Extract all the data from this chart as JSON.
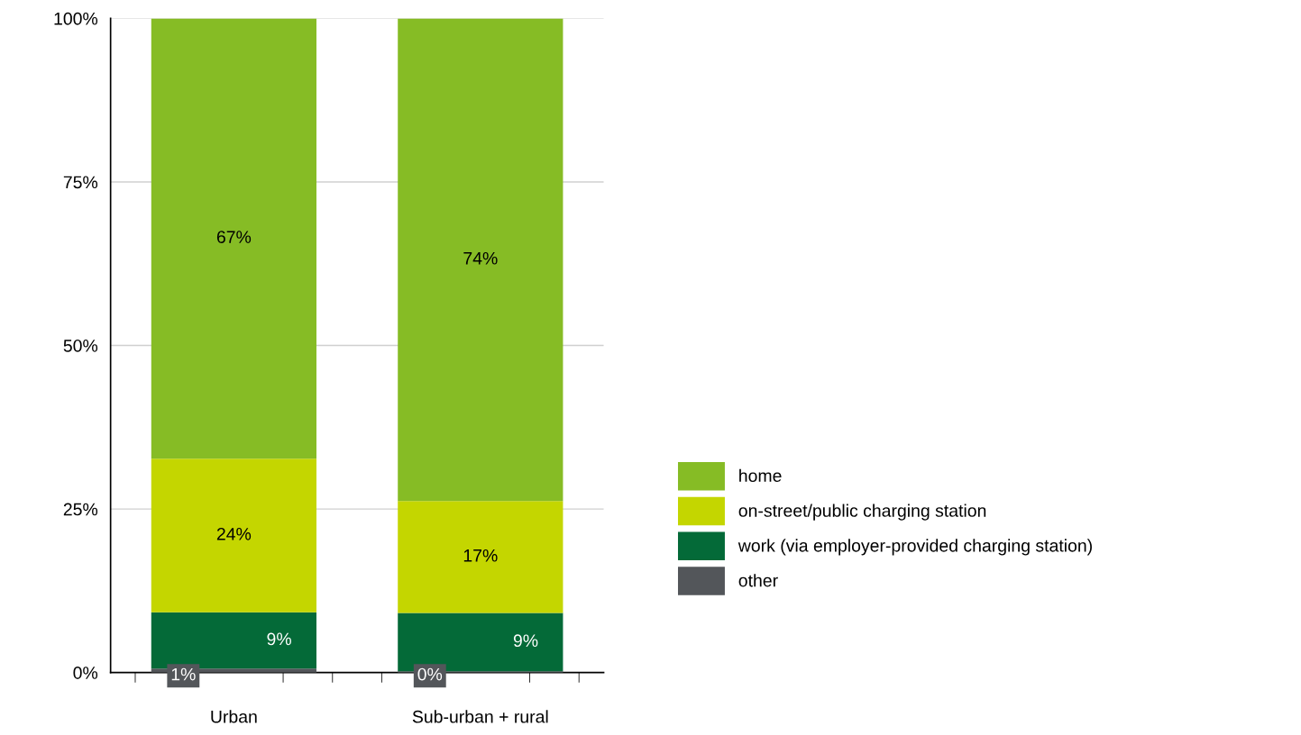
{
  "chart_data": {
    "type": "bar",
    "stacked": true,
    "categories": [
      "Urban",
      "Sub-urban + rural"
    ],
    "series": [
      {
        "name": "other",
        "color": "#53565a",
        "values": [
          0.6,
          0.2
        ],
        "value_labels": [
          "1%",
          "0%"
        ]
      },
      {
        "name": "work (via employer-provided charging station)",
        "color": "#046a38",
        "values": [
          8.6,
          8.9
        ],
        "value_labels": [
          "9%",
          "9%"
        ]
      },
      {
        "name": "on-street/public charging station",
        "color": "#c4d600",
        "values": [
          23.5,
          17.1
        ],
        "value_labels": [
          "24%",
          "17%"
        ]
      },
      {
        "name": "home",
        "color": "#86bc25",
        "values": [
          67.3,
          73.8
        ],
        "value_labels": [
          "67%",
          "74%"
        ]
      }
    ],
    "ylim": [
      0,
      100
    ],
    "yticks": [
      {
        "value": 0,
        "label": "0%"
      },
      {
        "value": 25,
        "label": "25%"
      },
      {
        "value": 50,
        "label": "50%"
      },
      {
        "value": 75,
        "label": "75%"
      },
      {
        "value": 100,
        "label": "100%"
      }
    ],
    "grid": "y",
    "legend": "right"
  }
}
